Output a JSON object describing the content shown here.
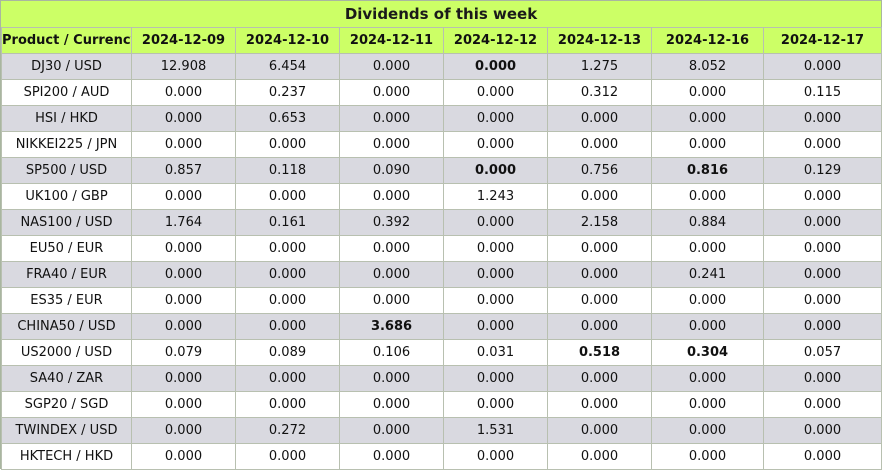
{
  "title": "Dividends of this week",
  "header": {
    "product": "Product / Currency",
    "dates": [
      "2024-12-09",
      "2024-12-10",
      "2024-12-11",
      "2024-12-12",
      "2024-12-13",
      "2024-12-16",
      "2024-12-17"
    ]
  },
  "rows": [
    {
      "product": "DJ30 / USD",
      "values": [
        "12.908",
        "6.454",
        "0.000",
        "0.000",
        "1.275",
        "8.052",
        "0.000"
      ],
      "bold": [
        3
      ]
    },
    {
      "product": "SPI200 / AUD",
      "values": [
        "0.000",
        "0.237",
        "0.000",
        "0.000",
        "0.312",
        "0.000",
        "0.115"
      ],
      "bold": []
    },
    {
      "product": "HSI / HKD",
      "values": [
        "0.000",
        "0.653",
        "0.000",
        "0.000",
        "0.000",
        "0.000",
        "0.000"
      ],
      "bold": []
    },
    {
      "product": "NIKKEI225 / JPN",
      "values": [
        "0.000",
        "0.000",
        "0.000",
        "0.000",
        "0.000",
        "0.000",
        "0.000"
      ],
      "bold": []
    },
    {
      "product": "SP500 / USD",
      "values": [
        "0.857",
        "0.118",
        "0.090",
        "0.000",
        "0.756",
        "0.816",
        "0.129"
      ],
      "bold": [
        3,
        5
      ]
    },
    {
      "product": "UK100 / GBP",
      "values": [
        "0.000",
        "0.000",
        "0.000",
        "1.243",
        "0.000",
        "0.000",
        "0.000"
      ],
      "bold": []
    },
    {
      "product": "NAS100 / USD",
      "values": [
        "1.764",
        "0.161",
        "0.392",
        "0.000",
        "2.158",
        "0.884",
        "0.000"
      ],
      "bold": []
    },
    {
      "product": "EU50 / EUR",
      "values": [
        "0.000",
        "0.000",
        "0.000",
        "0.000",
        "0.000",
        "0.000",
        "0.000"
      ],
      "bold": []
    },
    {
      "product": "FRA40 / EUR",
      "values": [
        "0.000",
        "0.000",
        "0.000",
        "0.000",
        "0.000",
        "0.241",
        "0.000"
      ],
      "bold": []
    },
    {
      "product": "ES35 / EUR",
      "values": [
        "0.000",
        "0.000",
        "0.000",
        "0.000",
        "0.000",
        "0.000",
        "0.000"
      ],
      "bold": []
    },
    {
      "product": "CHINA50 / USD",
      "values": [
        "0.000",
        "0.000",
        "3.686",
        "0.000",
        "0.000",
        "0.000",
        "0.000"
      ],
      "bold": [
        2
      ]
    },
    {
      "product": "US2000 / USD",
      "values": [
        "0.079",
        "0.089",
        "0.106",
        "0.031",
        "0.518",
        "0.304",
        "0.057"
      ],
      "bold": [
        4,
        5
      ]
    },
    {
      "product": "SA40 / ZAR",
      "values": [
        "0.000",
        "0.000",
        "0.000",
        "0.000",
        "0.000",
        "0.000",
        "0.000"
      ],
      "bold": []
    },
    {
      "product": "SGP20 / SGD",
      "values": [
        "0.000",
        "0.000",
        "0.000",
        "0.000",
        "0.000",
        "0.000",
        "0.000"
      ],
      "bold": []
    },
    {
      "product": "TWINDEX / USD",
      "values": [
        "0.000",
        "0.272",
        "0.000",
        "1.531",
        "0.000",
        "0.000",
        "0.000"
      ],
      "bold": []
    },
    {
      "product": "HKTECH / HKD",
      "values": [
        "0.000",
        "0.000",
        "0.000",
        "0.000",
        "0.000",
        "0.000",
        "0.000"
      ],
      "bold": []
    }
  ],
  "colors": {
    "header_bg": "#ccff66",
    "shaded_row_bg": "#d9d9e0",
    "plain_row_bg": "#ffffff"
  }
}
